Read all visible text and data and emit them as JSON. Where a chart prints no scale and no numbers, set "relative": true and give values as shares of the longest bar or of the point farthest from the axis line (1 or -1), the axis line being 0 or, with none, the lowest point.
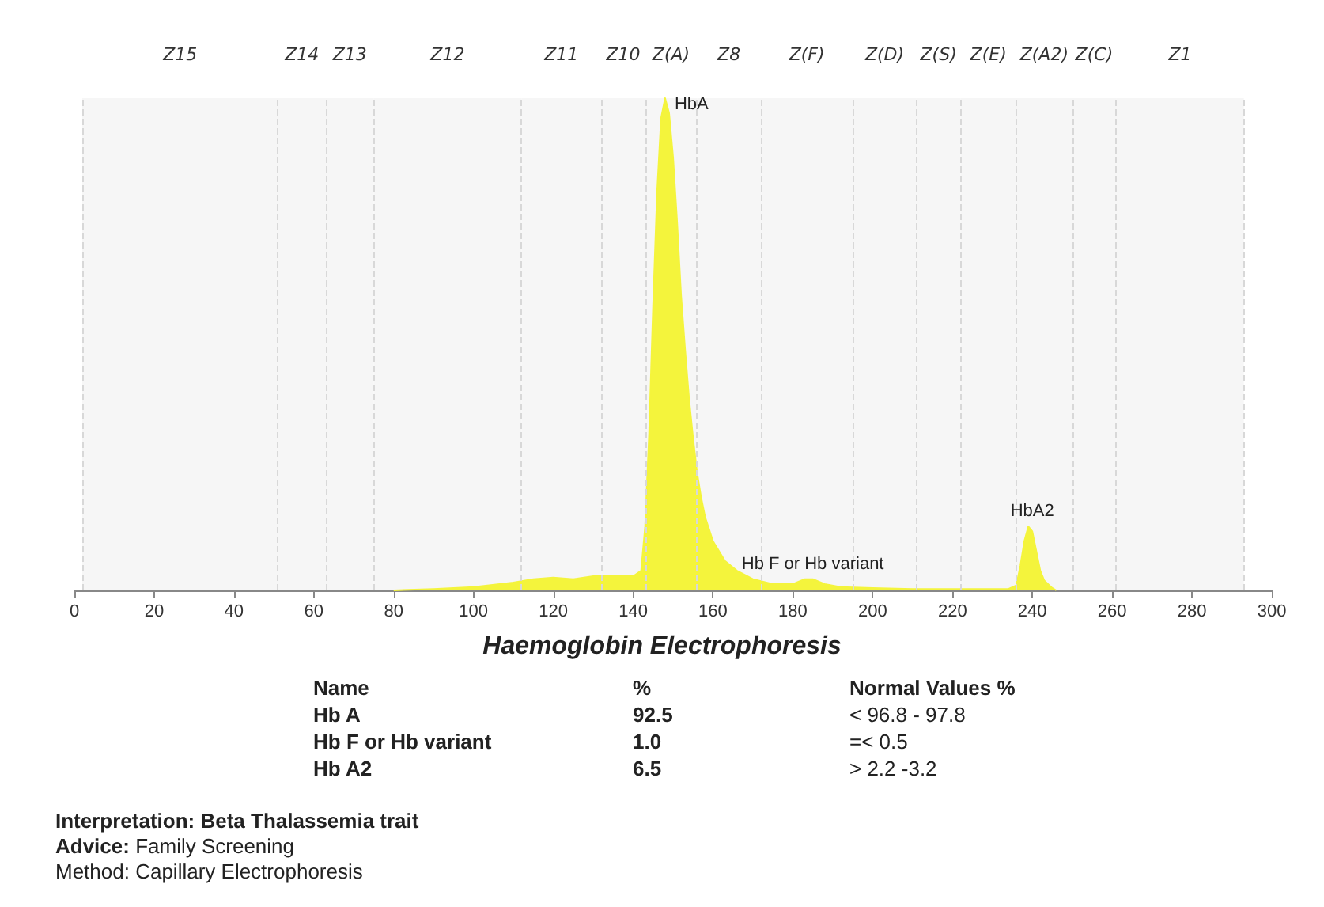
{
  "chart_data": {
    "type": "area",
    "relative": true,
    "title": "Haemoglobin Electrophoresis",
    "color": "#f4f43c",
    "x": [
      80,
      90,
      100,
      110,
      115,
      120,
      125,
      130,
      140,
      142,
      143,
      144,
      145,
      146,
      147,
      148,
      149,
      150,
      151,
      152,
      153,
      154,
      155,
      156,
      157,
      158,
      160,
      163,
      166,
      170,
      175,
      180,
      183,
      185,
      188,
      192,
      200,
      210,
      220,
      230,
      234,
      236,
      237,
      238,
      239,
      240,
      241,
      242,
      243,
      245,
      246
    ],
    "values": [
      0,
      0.003,
      0.007,
      0.016,
      0.023,
      0.026,
      0.023,
      0.029,
      0.029,
      0.04,
      0.13,
      0.32,
      0.58,
      0.81,
      0.96,
      1,
      0.97,
      0.88,
      0.75,
      0.6,
      0.49,
      0.39,
      0.31,
      0.24,
      0.19,
      0.15,
      0.1,
      0.06,
      0.04,
      0.023,
      0.013,
      0.013,
      0.023,
      0.023,
      0.013,
      0.007,
      0.005,
      0.003,
      0.003,
      0.003,
      0.003,
      0.01,
      0.05,
      0.1,
      0.13,
      0.12,
      0.08,
      0.04,
      0.02,
      0.005,
      0
    ],
    "xlim": [
      0,
      300
    ],
    "xticks": [
      0,
      20,
      40,
      60,
      80,
      100,
      120,
      140,
      160,
      180,
      200,
      220,
      240,
      260,
      280,
      300
    ],
    "bands": [
      {
        "axis": "x",
        "from": 2,
        "to": 51,
        "label": "Z15",
        "color": "#f6f6f6"
      },
      {
        "axis": "x",
        "from": 51,
        "to": 63,
        "label": "Z14",
        "color": "#f6f6f6"
      },
      {
        "axis": "x",
        "from": 63,
        "to": 75,
        "label": "Z13",
        "color": "#f6f6f6"
      },
      {
        "axis": "x",
        "from": 75,
        "to": 112,
        "label": "Z12",
        "color": "#f6f6f6"
      },
      {
        "axis": "x",
        "from": 112,
        "to": 132,
        "label": "Z11",
        "color": "#f6f6f6"
      },
      {
        "axis": "x",
        "from": 132,
        "to": 143,
        "label": "Z10",
        "color": "#f6f6f6"
      },
      {
        "axis": "x",
        "from": 143,
        "to": 156,
        "label": "Z(A)",
        "color": "#f6f6f6"
      },
      {
        "axis": "x",
        "from": 156,
        "to": 172,
        "label": "Z8",
        "color": "#f6f6f6"
      },
      {
        "axis": "x",
        "from": 172,
        "to": 195,
        "label": "Z(F)",
        "color": "#f6f6f6"
      },
      {
        "axis": "x",
        "from": 195,
        "to": 211,
        "label": "Z(D)",
        "color": "#f6f6f6"
      },
      {
        "axis": "x",
        "from": 211,
        "to": 222,
        "label": "Z(S)",
        "color": "#f6f6f6"
      },
      {
        "axis": "x",
        "from": 222,
        "to": 236,
        "label": "Z(E)",
        "color": "#f6f6f6"
      },
      {
        "axis": "x",
        "from": 236,
        "to": 250,
        "label": "Z(A2)",
        "color": "#f6f6f6"
      },
      {
        "axis": "x",
        "from": 250,
        "to": 261,
        "label": "Z(C)",
        "color": "#f6f6f6"
      },
      {
        "axis": "x",
        "from": 261,
        "to": 293,
        "label": "Z1",
        "color": "#f6f6f6"
      }
    ],
    "grid": false,
    "marker": "none",
    "ref_lines": [
      {
        "axis": "x",
        "value": 2,
        "line_style": "dashed"
      },
      {
        "axis": "x",
        "value": 51,
        "line_style": "dashed"
      },
      {
        "axis": "x",
        "value": 63,
        "line_style": "dashed"
      },
      {
        "axis": "x",
        "value": 75,
        "line_style": "dashed"
      },
      {
        "axis": "x",
        "value": 112,
        "line_style": "dashed"
      },
      {
        "axis": "x",
        "value": 132,
        "line_style": "dashed"
      },
      {
        "axis": "x",
        "value": 143,
        "line_style": "dashed"
      },
      {
        "axis": "x",
        "value": 156,
        "line_style": "dashed"
      },
      {
        "axis": "x",
        "value": 172,
        "line_style": "dashed"
      },
      {
        "axis": "x",
        "value": 195,
        "line_style": "dashed"
      },
      {
        "axis": "x",
        "value": 211,
        "line_style": "dashed"
      },
      {
        "axis": "x",
        "value": 222,
        "line_style": "dashed"
      },
      {
        "axis": "x",
        "value": 236,
        "line_style": "dashed"
      },
      {
        "axis": "x",
        "value": 250,
        "line_style": "dashed"
      },
      {
        "axis": "x",
        "value": 261,
        "line_style": "dashed"
      },
      {
        "axis": "x",
        "value": 293,
        "line_style": "dashed"
      }
    ],
    "annotations": [
      {
        "text": "HbA",
        "x": 148,
        "y": 1
      },
      {
        "text": "Hb F or Hb variant",
        "x": 185,
        "y": 0.023
      },
      {
        "text": "HbA2",
        "x": 240,
        "y": 0.13
      },
      "Name",
      "%",
      "Normal Values %",
      "Hb A",
      "92.5",
      "<  96.8 - 97.8",
      "Hb F or Hb variant",
      "1.0",
      "=< 0.5",
      "Hb A2",
      "6.5",
      ">  2.2 -3.2",
      "Interpretation: Beta Thalassemia trait",
      "Advice: Family Screening",
      "Method: Capillary Electrophoresis"
    ]
  }
}
